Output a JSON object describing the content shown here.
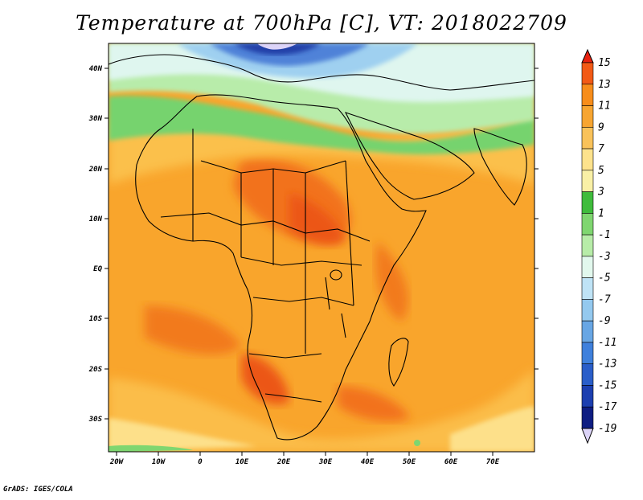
{
  "title": "Temperature at 700hPa [C], VT: 2018022709",
  "credit": "GrADS: IGES/COLA",
  "lat_ticks": [
    "40N",
    "30N",
    "20N",
    "10N",
    "EQ",
    "10S",
    "20S",
    "30S"
  ],
  "lon_ticks": [
    "20W",
    "10W",
    "0",
    "10E",
    "20E",
    "30E",
    "40E",
    "50E",
    "60E",
    "70E"
  ],
  "colorbar": {
    "labels": [
      "15",
      "13",
      "11",
      "9",
      "7",
      "5",
      "3",
      "1",
      "-1",
      "-3",
      "-5",
      "-7",
      "-9",
      "-11",
      "-13",
      "-15",
      "-17",
      "-19"
    ],
    "colors": [
      "#e8210f",
      "#f25a16",
      "#f78d1b",
      "#f7a531",
      "#f9c25a",
      "#fde28c",
      "#f9f0a6",
      "#3fbc3c",
      "#7fd670",
      "#b7eca8",
      "#e2f8ed",
      "#bfe3f6",
      "#94c9ef",
      "#68a6e4",
      "#3f80dc",
      "#2a5ec9",
      "#1c3fb0",
      "#0e1d82",
      "#dcd4f8"
    ]
  },
  "legend_colors": {
    "land_warm": "#f79a24",
    "warm_core": "#f2721b",
    "hot_core": "#ec5619",
    "mild": "#fbb93f",
    "green": "#6fd86a",
    "cold": "#cfeef5",
    "very_cold": "#2f5ec5"
  }
}
